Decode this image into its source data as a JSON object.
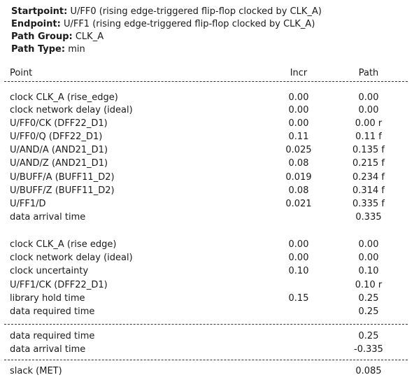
{
  "header": {
    "startpoint_label": "Startpoint:",
    "startpoint_value": " U/FF0 (rising edge-triggered flip-flop clocked by CLK_A)",
    "endpoint_label": "Endpoint:",
    "endpoint_value": " U/FF1 (rising edge-triggered flip-flop clocked by CLK_A)",
    "path_group_label": "Path Group:",
    "path_group_value": " CLK_A",
    "path_type_label": "Path Type:",
    "path_type_value": " min"
  },
  "columns": {
    "point": "Point",
    "incr": "Incr",
    "path": "Path"
  },
  "arrival": [
    {
      "point": "clock CLK_A (rise_edge)",
      "incr": "0.00",
      "path": "0.00"
    },
    {
      "point": "clock network delay (ideal)",
      "incr": "0.00",
      "path": "0.00"
    },
    {
      "point": "U/FF0/CK (DFF22_D1)",
      "incr": "0.00",
      "path": "0.00 r"
    },
    {
      "point": "U/FF0/Q (DFF22_D1)",
      "incr": "0.11",
      "path": "0.11 f"
    },
    {
      "point": "U/AND/A (AND21_D1)",
      "incr": "0.025",
      "path": "0.135 f"
    },
    {
      "point": "U/AND/Z (AND21_D1)",
      "incr": "0.08",
      "path": "0.215 f"
    },
    {
      "point": "U/BUFF/A (BUFF11_D2)",
      "incr": "0.019",
      "path": "0.234 f"
    },
    {
      "point": "U/BUFF/Z (BUFF11_D2)",
      "incr": "0.08",
      "path": "0.314 f"
    },
    {
      "point": "U/FF1/D",
      "incr": "0.021",
      "path": "0.335 f"
    },
    {
      "point": "data arrival time",
      "incr": "",
      "path": "0.335"
    }
  ],
  "required": [
    {
      "point": "clock CLK_A (rise edge)",
      "incr": "0.00",
      "path": "0.00"
    },
    {
      "point": "clock network delay (ideal)",
      "incr": "0.00",
      "path": "0.00"
    },
    {
      "point": "clock uncertainty",
      "incr": "0.10",
      "path": "0.10"
    },
    {
      "point": "U/FF1/CK (DFF22_D1)",
      "incr": "",
      "path": "0.10 r"
    },
    {
      "point": "library hold time",
      "incr": "0.15",
      "path": "0.25"
    },
    {
      "point": "data required time",
      "incr": "",
      "path": "0.25"
    }
  ],
  "summary": [
    {
      "point": "data required time",
      "incr": "",
      "path": "0.25"
    },
    {
      "point": "data arrival time",
      "incr": "",
      "path": "-0.335"
    }
  ],
  "slack": {
    "point": "slack (MET)",
    "incr": "",
    "path": "0.085"
  }
}
